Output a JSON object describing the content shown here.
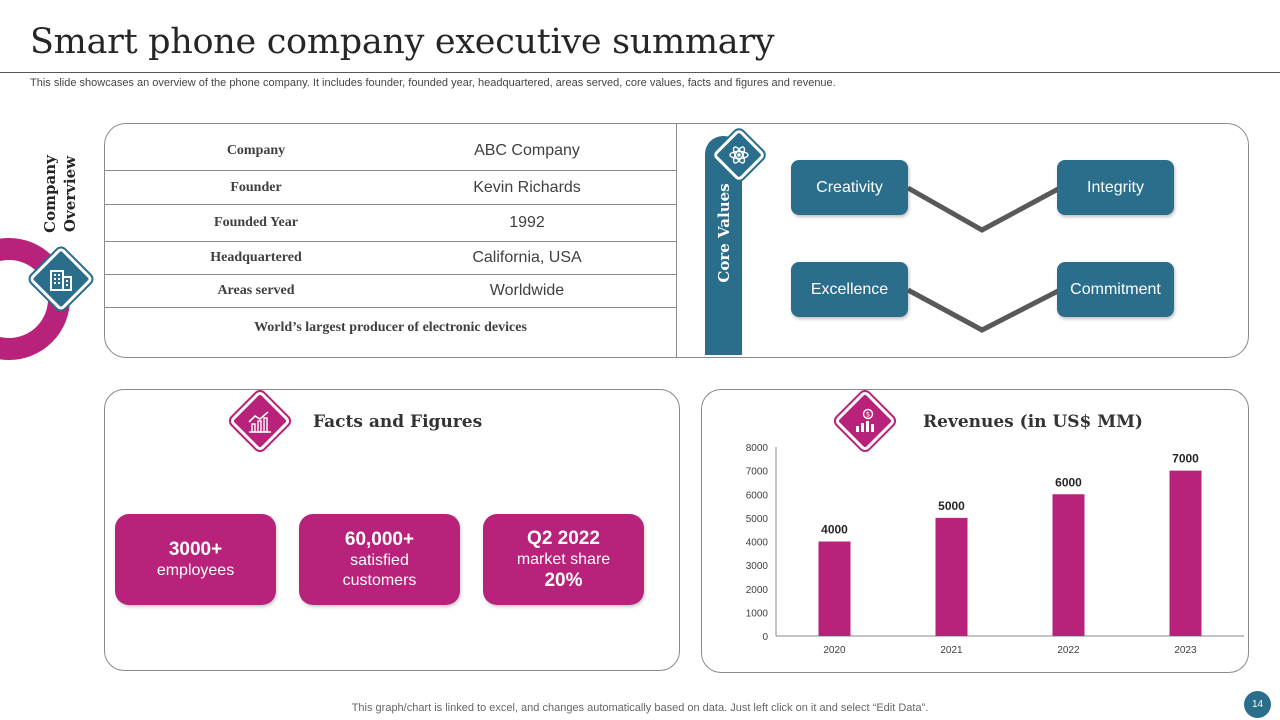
{
  "title": "Smart phone company executive summary",
  "subtitle": "This slide showcases an overview of the phone company. It includes founder, founded year, headquartered, areas served, core values, facts and figures and revenue.",
  "overview": {
    "side_label_line1": "Company",
    "side_label_line2": "Overview",
    "rows": [
      {
        "label": "Company",
        "value": "ABC Company"
      },
      {
        "label": "Founder",
        "value": "Kevin Richards"
      },
      {
        "label": "Founded Year",
        "value": "1992"
      },
      {
        "label": "Headquartered",
        "value": "California, USA"
      },
      {
        "label": "Areas served",
        "value": "Worldwide"
      }
    ],
    "tagline": "World’s largest producer of electronic devices"
  },
  "core_values": {
    "title": "Core Values",
    "items": [
      "Creativity",
      "Integrity",
      "Excellence",
      "Commitment"
    ]
  },
  "facts": {
    "title": "Facts and Figures",
    "cards": [
      {
        "big": "3000+",
        "small": "employees"
      },
      {
        "big": "60,000+",
        "small1": "satisfied",
        "small2": "customers"
      },
      {
        "big": "Q2 2022",
        "small": "market share",
        "big2": "20%"
      }
    ]
  },
  "revenue": {
    "title": "Revenues (in US$ MM)"
  },
  "chart_data": {
    "type": "bar",
    "title": "Revenues (in US$ MM)",
    "categories": [
      "2020",
      "2021",
      "2022",
      "2023"
    ],
    "values": [
      4000,
      5000,
      6000,
      7000
    ],
    "ylim": [
      0,
      8000
    ],
    "yticks": [
      0,
      1000,
      2000,
      3000,
      4000,
      5000,
      6000,
      7000,
      8000
    ],
    "bar_color": "#b8227a",
    "data_labels": true
  },
  "colors": {
    "accent_magenta": "#b8227a",
    "accent_teal": "#2b6e8c"
  },
  "footer": "This graph/chart is linked to excel,  and changes automatically based on data. Just left click on it and select “Edit Data”.",
  "page_number": "14"
}
